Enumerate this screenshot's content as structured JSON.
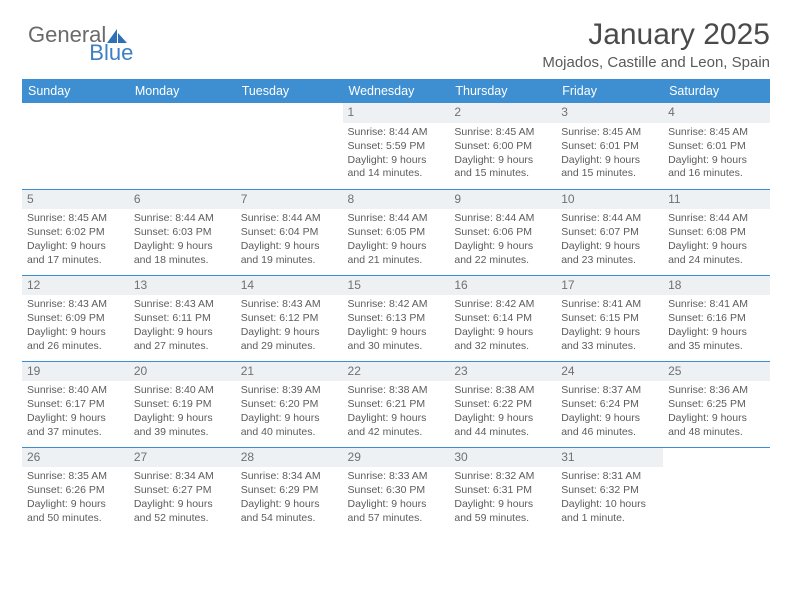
{
  "brand": {
    "part1": "General",
    "part2": "Blue"
  },
  "title": "January 2025",
  "location": "Mojados, Castille and Leon, Spain",
  "colors": {
    "header_bg": "#3d8fd1",
    "header_fg": "#ffffff",
    "daynum_bg": "#eef1f4",
    "text": "#5c5c5c",
    "rule": "#3d8fd1"
  },
  "weekdays": [
    "Sunday",
    "Monday",
    "Tuesday",
    "Wednesday",
    "Thursday",
    "Friday",
    "Saturday"
  ],
  "weeks": [
    [
      {
        "day": "",
        "lines": []
      },
      {
        "day": "",
        "lines": []
      },
      {
        "day": "",
        "lines": []
      },
      {
        "day": "1",
        "lines": [
          "Sunrise: 8:44 AM",
          "Sunset: 5:59 PM",
          "Daylight: 9 hours",
          "and 14 minutes."
        ]
      },
      {
        "day": "2",
        "lines": [
          "Sunrise: 8:45 AM",
          "Sunset: 6:00 PM",
          "Daylight: 9 hours",
          "and 15 minutes."
        ]
      },
      {
        "day": "3",
        "lines": [
          "Sunrise: 8:45 AM",
          "Sunset: 6:01 PM",
          "Daylight: 9 hours",
          "and 15 minutes."
        ]
      },
      {
        "day": "4",
        "lines": [
          "Sunrise: 8:45 AM",
          "Sunset: 6:01 PM",
          "Daylight: 9 hours",
          "and 16 minutes."
        ]
      }
    ],
    [
      {
        "day": "5",
        "lines": [
          "Sunrise: 8:45 AM",
          "Sunset: 6:02 PM",
          "Daylight: 9 hours",
          "and 17 minutes."
        ]
      },
      {
        "day": "6",
        "lines": [
          "Sunrise: 8:44 AM",
          "Sunset: 6:03 PM",
          "Daylight: 9 hours",
          "and 18 minutes."
        ]
      },
      {
        "day": "7",
        "lines": [
          "Sunrise: 8:44 AM",
          "Sunset: 6:04 PM",
          "Daylight: 9 hours",
          "and 19 minutes."
        ]
      },
      {
        "day": "8",
        "lines": [
          "Sunrise: 8:44 AM",
          "Sunset: 6:05 PM",
          "Daylight: 9 hours",
          "and 21 minutes."
        ]
      },
      {
        "day": "9",
        "lines": [
          "Sunrise: 8:44 AM",
          "Sunset: 6:06 PM",
          "Daylight: 9 hours",
          "and 22 minutes."
        ]
      },
      {
        "day": "10",
        "lines": [
          "Sunrise: 8:44 AM",
          "Sunset: 6:07 PM",
          "Daylight: 9 hours",
          "and 23 minutes."
        ]
      },
      {
        "day": "11",
        "lines": [
          "Sunrise: 8:44 AM",
          "Sunset: 6:08 PM",
          "Daylight: 9 hours",
          "and 24 minutes."
        ]
      }
    ],
    [
      {
        "day": "12",
        "lines": [
          "Sunrise: 8:43 AM",
          "Sunset: 6:09 PM",
          "Daylight: 9 hours",
          "and 26 minutes."
        ]
      },
      {
        "day": "13",
        "lines": [
          "Sunrise: 8:43 AM",
          "Sunset: 6:11 PM",
          "Daylight: 9 hours",
          "and 27 minutes."
        ]
      },
      {
        "day": "14",
        "lines": [
          "Sunrise: 8:43 AM",
          "Sunset: 6:12 PM",
          "Daylight: 9 hours",
          "and 29 minutes."
        ]
      },
      {
        "day": "15",
        "lines": [
          "Sunrise: 8:42 AM",
          "Sunset: 6:13 PM",
          "Daylight: 9 hours",
          "and 30 minutes."
        ]
      },
      {
        "day": "16",
        "lines": [
          "Sunrise: 8:42 AM",
          "Sunset: 6:14 PM",
          "Daylight: 9 hours",
          "and 32 minutes."
        ]
      },
      {
        "day": "17",
        "lines": [
          "Sunrise: 8:41 AM",
          "Sunset: 6:15 PM",
          "Daylight: 9 hours",
          "and 33 minutes."
        ]
      },
      {
        "day": "18",
        "lines": [
          "Sunrise: 8:41 AM",
          "Sunset: 6:16 PM",
          "Daylight: 9 hours",
          "and 35 minutes."
        ]
      }
    ],
    [
      {
        "day": "19",
        "lines": [
          "Sunrise: 8:40 AM",
          "Sunset: 6:17 PM",
          "Daylight: 9 hours",
          "and 37 minutes."
        ]
      },
      {
        "day": "20",
        "lines": [
          "Sunrise: 8:40 AM",
          "Sunset: 6:19 PM",
          "Daylight: 9 hours",
          "and 39 minutes."
        ]
      },
      {
        "day": "21",
        "lines": [
          "Sunrise: 8:39 AM",
          "Sunset: 6:20 PM",
          "Daylight: 9 hours",
          "and 40 minutes."
        ]
      },
      {
        "day": "22",
        "lines": [
          "Sunrise: 8:38 AM",
          "Sunset: 6:21 PM",
          "Daylight: 9 hours",
          "and 42 minutes."
        ]
      },
      {
        "day": "23",
        "lines": [
          "Sunrise: 8:38 AM",
          "Sunset: 6:22 PM",
          "Daylight: 9 hours",
          "and 44 minutes."
        ]
      },
      {
        "day": "24",
        "lines": [
          "Sunrise: 8:37 AM",
          "Sunset: 6:24 PM",
          "Daylight: 9 hours",
          "and 46 minutes."
        ]
      },
      {
        "day": "25",
        "lines": [
          "Sunrise: 8:36 AM",
          "Sunset: 6:25 PM",
          "Daylight: 9 hours",
          "and 48 minutes."
        ]
      }
    ],
    [
      {
        "day": "26",
        "lines": [
          "Sunrise: 8:35 AM",
          "Sunset: 6:26 PM",
          "Daylight: 9 hours",
          "and 50 minutes."
        ]
      },
      {
        "day": "27",
        "lines": [
          "Sunrise: 8:34 AM",
          "Sunset: 6:27 PM",
          "Daylight: 9 hours",
          "and 52 minutes."
        ]
      },
      {
        "day": "28",
        "lines": [
          "Sunrise: 8:34 AM",
          "Sunset: 6:29 PM",
          "Daylight: 9 hours",
          "and 54 minutes."
        ]
      },
      {
        "day": "29",
        "lines": [
          "Sunrise: 8:33 AM",
          "Sunset: 6:30 PM",
          "Daylight: 9 hours",
          "and 57 minutes."
        ]
      },
      {
        "day": "30",
        "lines": [
          "Sunrise: 8:32 AM",
          "Sunset: 6:31 PM",
          "Daylight: 9 hours",
          "and 59 minutes."
        ]
      },
      {
        "day": "31",
        "lines": [
          "Sunrise: 8:31 AM",
          "Sunset: 6:32 PM",
          "Daylight: 10 hours",
          "and 1 minute."
        ]
      },
      {
        "day": "",
        "lines": []
      }
    ]
  ]
}
